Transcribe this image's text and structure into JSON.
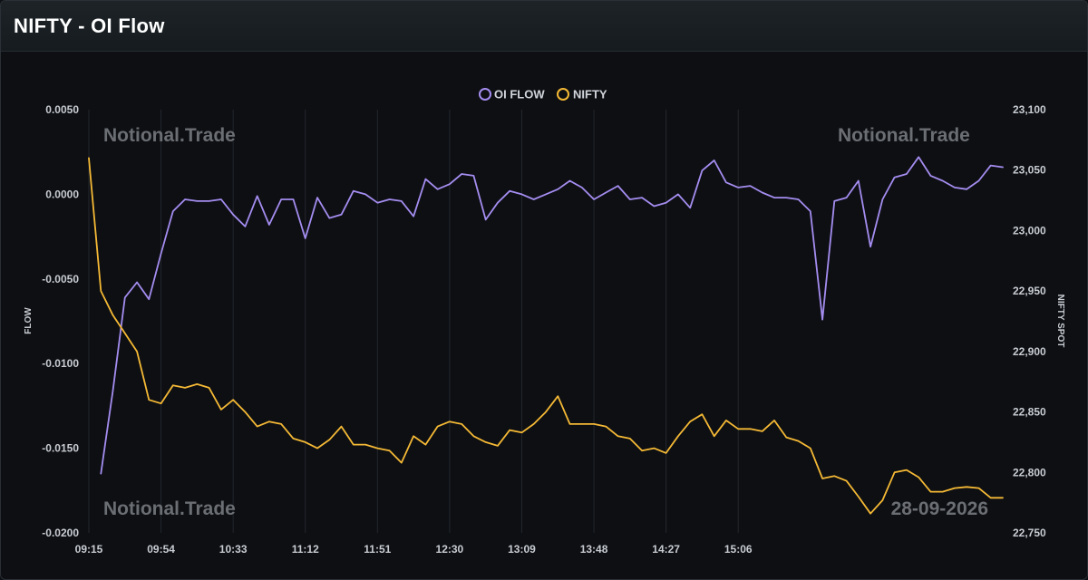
{
  "header": {
    "title": "NIFTY - OI Flow"
  },
  "watermarks": {
    "brand": "Notional.Trade",
    "date": "28-09-2026"
  },
  "colors": {
    "oi_flow": "#a58df0",
    "nifty": "#f5b935",
    "grid": "#23272d",
    "text": "#c8ccd2"
  },
  "chart_data": {
    "type": "line",
    "legend": [
      "OI FLOW",
      "NIFTY"
    ],
    "legend_position": "top-center",
    "grid": {
      "vertical": true,
      "horizontal": false
    },
    "x_labels": [
      "09:15",
      "09:54",
      "10:33",
      "11:12",
      "11:51",
      "12:30",
      "13:09",
      "13:48",
      "14:27",
      "15:06"
    ],
    "x_range": [
      0,
      76
    ],
    "y_left": {
      "label": "FLOW",
      "range": [
        -0.02,
        0.005
      ],
      "ticks": [
        "0.0050",
        "0.0000",
        "-0.0050",
        "-0.0100",
        "-0.0150",
        "-0.0200"
      ],
      "tick_values": [
        0.005,
        0,
        -0.005,
        -0.01,
        -0.015,
        -0.02
      ]
    },
    "y_right": {
      "label": "NIFTY SPOT",
      "range": [
        22750,
        23100
      ],
      "ticks": [
        "23,100",
        "23,050",
        "23,000",
        "22,950",
        "22,900",
        "22,850",
        "22,800",
        "22,750"
      ],
      "tick_values": [
        23100,
        23050,
        23000,
        22950,
        22900,
        22850,
        22800,
        22750
      ]
    },
    "series": [
      {
        "name": "OI FLOW",
        "axis": "left",
        "x_start": 1,
        "values": [
          -0.0165,
          -0.0116,
          -0.0061,
          -0.0052,
          -0.0062,
          -0.0035,
          -0.001,
          -0.0003,
          -0.0004,
          -0.0004,
          -0.0003,
          -0.0012,
          -0.0019,
          -0.0001,
          -0.0018,
          -0.0003,
          -0.0003,
          -0.0026,
          -0.0002,
          -0.0014,
          -0.0012,
          0.0002,
          0.0,
          -0.0005,
          -0.0003,
          -0.0004,
          -0.0013,
          0.0009,
          0.0003,
          0.0006,
          0.0012,
          0.0011,
          -0.0015,
          -0.0005,
          0.0002,
          0.0,
          -0.0003,
          0.0,
          0.0003,
          0.0008,
          0.0004,
          -0.0003,
          0.0001,
          0.0005,
          -0.0003,
          -0.0002,
          -0.0007,
          -0.0005,
          0.0,
          -0.0008,
          0.0014,
          0.002,
          0.0007,
          0.0004,
          0.0005,
          0.0001,
          -0.0002,
          -0.0002,
          -0.0003,
          -0.001,
          -0.0074,
          -0.0004,
          -0.0002,
          0.0008,
          -0.0031,
          -0.0003,
          0.001,
          0.0012,
          0.0022,
          0.0011,
          0.0008,
          0.0004,
          0.0003,
          0.0008,
          0.0017,
          0.0016
        ]
      },
      {
        "name": "NIFTY",
        "axis": "right",
        "x_start": 0,
        "values": [
          23060,
          22950,
          22930,
          22915,
          22900,
          22860,
          22857,
          22872,
          22870,
          22873,
          22870,
          22852,
          22860,
          22850,
          22838,
          22842,
          22840,
          22828,
          22825,
          22820,
          22827,
          22838,
          22823,
          22823,
          22820,
          22818,
          22808,
          22830,
          22823,
          22838,
          22842,
          22840,
          22830,
          22825,
          22822,
          22835,
          22833,
          22840,
          22850,
          22863,
          22840,
          22840,
          22840,
          22838,
          22830,
          22828,
          22818,
          22820,
          22816,
          22830,
          22842,
          22848,
          22830,
          22843,
          22836,
          22836,
          22834,
          22843,
          22829,
          22826,
          22820,
          22795,
          22797,
          22793,
          22780,
          22766,
          22777,
          22800,
          22802,
          22796,
          22784,
          22784,
          22787,
          22788,
          22787,
          22779,
          22779
        ]
      }
    ]
  }
}
